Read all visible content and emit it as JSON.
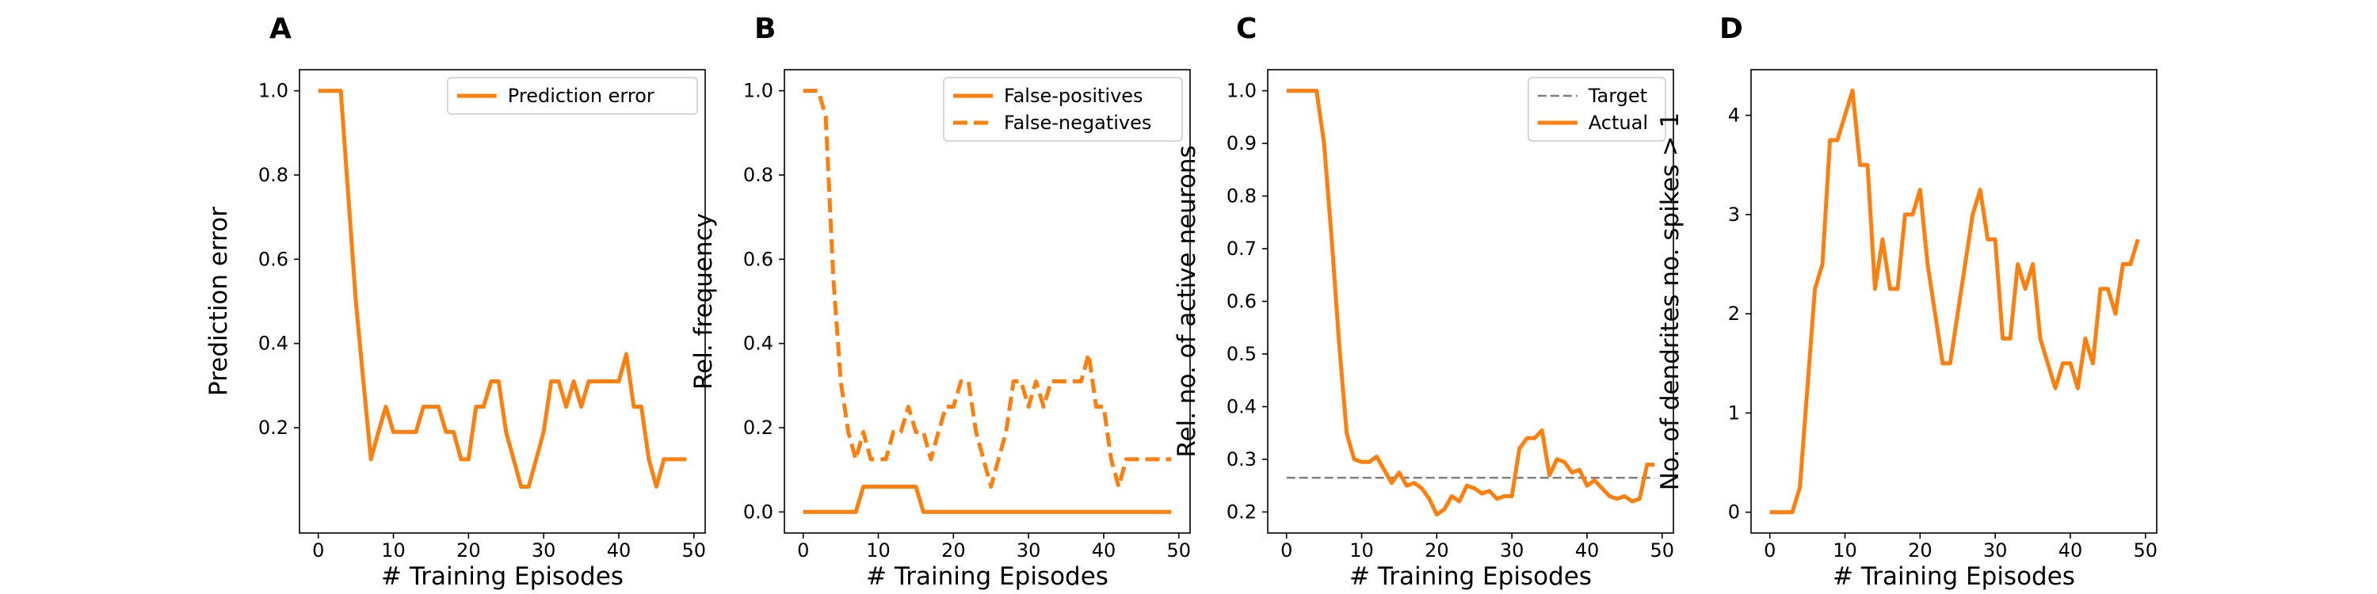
{
  "figure": {
    "background": "#ffffff",
    "series_color": "#ff7f0e",
    "target_color": "#808080"
  },
  "chart_data": [
    {
      "type": "line",
      "panel_label": "A",
      "xlabel": "# Training Episodes",
      "ylabel": "Prediction error",
      "xlim": [
        -2.5,
        51.5
      ],
      "ylim": [
        -0.05,
        1.05
      ],
      "xticks": [
        0,
        10,
        20,
        30,
        40,
        50
      ],
      "yticks": [
        0.2,
        0.4,
        0.6,
        0.8,
        1.0
      ],
      "ytick_decimals": 1,
      "legend": "top-right",
      "grid": false,
      "series": [
        {
          "name": "Prediction error",
          "style": "solid",
          "x": [
            0,
            1,
            2,
            3,
            4,
            5,
            6,
            7,
            8,
            9,
            10,
            11,
            12,
            13,
            14,
            15,
            16,
            17,
            18,
            19,
            20,
            21,
            22,
            23,
            24,
            25,
            26,
            27,
            28,
            29,
            30,
            31,
            32,
            33,
            34,
            35,
            36,
            37,
            38,
            39,
            40,
            41,
            42,
            43,
            44,
            45,
            46,
            47,
            48,
            49
          ],
          "y": [
            1.0,
            1.0,
            1.0,
            1.0,
            0.75,
            0.5,
            0.31,
            0.125,
            0.19,
            0.25,
            0.19,
            0.19,
            0.19,
            0.19,
            0.25,
            0.25,
            0.25,
            0.19,
            0.19,
            0.125,
            0.125,
            0.25,
            0.25,
            0.31,
            0.31,
            0.19,
            0.125,
            0.06,
            0.06,
            0.125,
            0.19,
            0.31,
            0.31,
            0.25,
            0.31,
            0.25,
            0.31,
            0.31,
            0.31,
            0.31,
            0.31,
            0.375,
            0.25,
            0.25,
            0.125,
            0.06,
            0.125,
            0.125,
            0.125,
            0.125
          ]
        }
      ]
    },
    {
      "type": "line",
      "panel_label": "B",
      "xlabel": "# Training Episodes",
      "ylabel": "Rel. frequency",
      "xlim": [
        -2.5,
        51.5
      ],
      "ylim": [
        -0.05,
        1.05
      ],
      "xticks": [
        0,
        10,
        20,
        30,
        40,
        50
      ],
      "yticks": [
        0.0,
        0.2,
        0.4,
        0.6,
        0.8,
        1.0
      ],
      "ytick_decimals": 1,
      "legend": "top-right",
      "grid": false,
      "series": [
        {
          "name": "False-positives",
          "style": "solid",
          "x": [
            0,
            1,
            2,
            3,
            4,
            5,
            6,
            7,
            8,
            9,
            10,
            11,
            12,
            13,
            14,
            15,
            16,
            17,
            18,
            19,
            20,
            21,
            22,
            23,
            24,
            25,
            26,
            27,
            28,
            29,
            30,
            31,
            32,
            33,
            34,
            35,
            36,
            37,
            38,
            39,
            40,
            41,
            42,
            43,
            44,
            45,
            46,
            47,
            48,
            49
          ],
          "y": [
            0,
            0,
            0,
            0,
            0,
            0,
            0,
            0,
            0.06,
            0.06,
            0.06,
            0.06,
            0.06,
            0.06,
            0.06,
            0.06,
            0,
            0,
            0,
            0,
            0,
            0,
            0,
            0,
            0,
            0,
            0,
            0,
            0,
            0,
            0,
            0,
            0,
            0,
            0,
            0,
            0,
            0,
            0,
            0,
            0,
            0,
            0,
            0,
            0,
            0,
            0,
            0,
            0,
            0
          ]
        },
        {
          "name": "False-negatives",
          "style": "dashed",
          "x": [
            0,
            1,
            2,
            3,
            4,
            5,
            6,
            7,
            8,
            9,
            10,
            11,
            12,
            13,
            14,
            15,
            16,
            17,
            18,
            19,
            20,
            21,
            22,
            23,
            24,
            25,
            26,
            27,
            28,
            29,
            30,
            31,
            32,
            33,
            34,
            35,
            36,
            37,
            38,
            39,
            40,
            41,
            42,
            43,
            44,
            45,
            46,
            47,
            48,
            49
          ],
          "y": [
            1.0,
            1.0,
            1.0,
            0.94,
            0.56,
            0.31,
            0.19,
            0.125,
            0.19,
            0.125,
            0.125,
            0.125,
            0.19,
            0.19,
            0.25,
            0.19,
            0.19,
            0.125,
            0.19,
            0.25,
            0.25,
            0.31,
            0.31,
            0.19,
            0.125,
            0.06,
            0.125,
            0.19,
            0.31,
            0.31,
            0.25,
            0.31,
            0.25,
            0.31,
            0.31,
            0.31,
            0.31,
            0.31,
            0.375,
            0.25,
            0.25,
            0.125,
            0.06,
            0.125,
            0.125,
            0.125,
            0.125,
            0.125,
            0.125,
            0.125
          ]
        }
      ]
    },
    {
      "type": "line",
      "panel_label": "C",
      "xlabel": "# Training Episodes",
      "ylabel": "Rel. no. of active neurons",
      "xlim": [
        -2.5,
        51.5
      ],
      "ylim": [
        0.16,
        1.04
      ],
      "xticks": [
        0,
        10,
        20,
        30,
        40,
        50
      ],
      "yticks": [
        0.2,
        0.3,
        0.4,
        0.5,
        0.6,
        0.7,
        0.8,
        0.9,
        1.0
      ],
      "ytick_decimals": 1,
      "legend": "top-right",
      "grid": false,
      "series": [
        {
          "name": "Target",
          "style": "dashed-thin",
          "color": "#808080",
          "x": [
            0,
            49
          ],
          "y": [
            0.265,
            0.265
          ]
        },
        {
          "name": "Actual",
          "style": "solid",
          "x": [
            0,
            1,
            2,
            3,
            4,
            5,
            6,
            7,
            8,
            9,
            10,
            11,
            12,
            13,
            14,
            15,
            16,
            17,
            18,
            19,
            20,
            21,
            22,
            23,
            24,
            25,
            26,
            27,
            28,
            29,
            30,
            31,
            32,
            33,
            34,
            35,
            36,
            37,
            38,
            39,
            40,
            41,
            42,
            43,
            44,
            45,
            46,
            47,
            48,
            49
          ],
          "y": [
            1.0,
            1.0,
            1.0,
            1.0,
            1.0,
            0.9,
            0.72,
            0.52,
            0.35,
            0.3,
            0.295,
            0.295,
            0.305,
            0.28,
            0.255,
            0.275,
            0.25,
            0.255,
            0.245,
            0.225,
            0.195,
            0.205,
            0.23,
            0.22,
            0.25,
            0.245,
            0.235,
            0.24,
            0.225,
            0.23,
            0.23,
            0.32,
            0.34,
            0.34,
            0.355,
            0.27,
            0.3,
            0.295,
            0.275,
            0.28,
            0.25,
            0.26,
            0.245,
            0.23,
            0.225,
            0.23,
            0.22,
            0.225,
            0.29,
            0.29
          ]
        }
      ]
    },
    {
      "type": "line",
      "panel_label": "D",
      "xlabel": "# Training Episodes",
      "ylabel": "No. of dendrites no. spikes > 1",
      "xlim": [
        -2.5,
        51.5
      ],
      "ylim": [
        -0.21,
        4.46
      ],
      "xticks": [
        0,
        10,
        20,
        30,
        40,
        50
      ],
      "yticks": [
        0,
        1,
        2,
        3,
        4
      ],
      "ytick_decimals": 0,
      "legend": "none",
      "grid": false,
      "series": [
        {
          "name": "",
          "style": "solid",
          "x": [
            0,
            1,
            2,
            3,
            4,
            5,
            6,
            7,
            8,
            9,
            10,
            11,
            12,
            13,
            14,
            15,
            16,
            17,
            18,
            19,
            20,
            21,
            22,
            23,
            24,
            25,
            26,
            27,
            28,
            29,
            30,
            31,
            32,
            33,
            34,
            35,
            36,
            37,
            38,
            39,
            40,
            41,
            42,
            43,
            44,
            45,
            46,
            47,
            48,
            49
          ],
          "y": [
            0,
            0,
            0,
            0,
            0.25,
            1.25,
            2.25,
            2.5,
            3.75,
            3.75,
            4.0,
            4.25,
            3.5,
            3.5,
            2.25,
            2.75,
            2.25,
            2.25,
            3.0,
            3.0,
            3.25,
            2.5,
            2.0,
            1.5,
            1.5,
            2.0,
            2.5,
            3.0,
            3.25,
            2.75,
            2.75,
            1.75,
            1.75,
            2.5,
            2.25,
            2.5,
            1.75,
            1.5,
            1.25,
            1.5,
            1.5,
            1.25,
            1.75,
            1.5,
            2.25,
            2.25,
            2.0,
            2.5,
            2.5,
            2.75
          ]
        }
      ]
    }
  ]
}
